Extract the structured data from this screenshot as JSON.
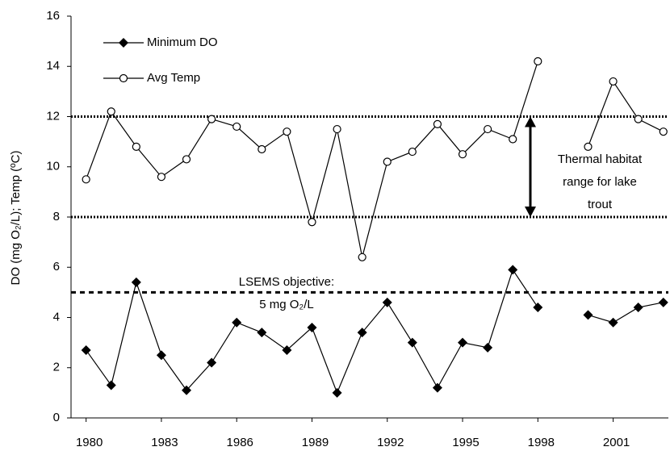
{
  "chart_data": {
    "type": "line",
    "y_label": "DO (mg O₂/L); Temp (ºC)",
    "x": [
      1980,
      1981,
      1982,
      1983,
      1984,
      1985,
      1986,
      1987,
      1988,
      1989,
      1990,
      1991,
      1992,
      1993,
      1994,
      1995,
      1996,
      1997,
      1998,
      1999,
      2000,
      2001,
      2002,
      2003
    ],
    "series": [
      {
        "name": "Minimum DO",
        "color": "#000000",
        "marker": "diamond",
        "values": [
          2.7,
          1.3,
          5.4,
          2.5,
          1.1,
          2.2,
          3.8,
          3.4,
          2.7,
          3.6,
          1.0,
          3.4,
          4.6,
          3.0,
          1.2,
          3.0,
          2.8,
          5.9,
          4.4,
          null,
          4.1,
          3.8,
          4.4,
          4.6
        ]
      },
      {
        "name": "Avg Temp",
        "color": "#000000",
        "marker": "open-circle",
        "values": [
          9.5,
          12.2,
          10.8,
          9.6,
          10.3,
          11.9,
          11.6,
          10.7,
          11.4,
          7.8,
          11.5,
          6.4,
          10.2,
          10.6,
          11.7,
          10.5,
          11.5,
          11.1,
          14.2,
          null,
          10.8,
          13.4,
          11.9,
          11.4
        ]
      }
    ],
    "xlim": [
      1979.4,
      2003.2
    ],
    "xticks": [
      1980,
      1983,
      1986,
      1989,
      1992,
      1995,
      1998,
      2001
    ],
    "ylim": [
      0,
      16
    ],
    "yticks": [
      0,
      2,
      4,
      6,
      8,
      10,
      12,
      14,
      16
    ],
    "legend": "top-left",
    "reference_lines": [
      {
        "value": 12,
        "style": "dotted"
      },
      {
        "value": 8,
        "style": "dotted"
      },
      {
        "value": 5,
        "style": "dashed"
      }
    ],
    "annotations": {
      "objective": [
        "LSEMS objective:",
        "5 mg O₂/L"
      ],
      "thermal": [
        "Thermal habitat",
        "range for lake",
        "trout"
      ]
    }
  }
}
